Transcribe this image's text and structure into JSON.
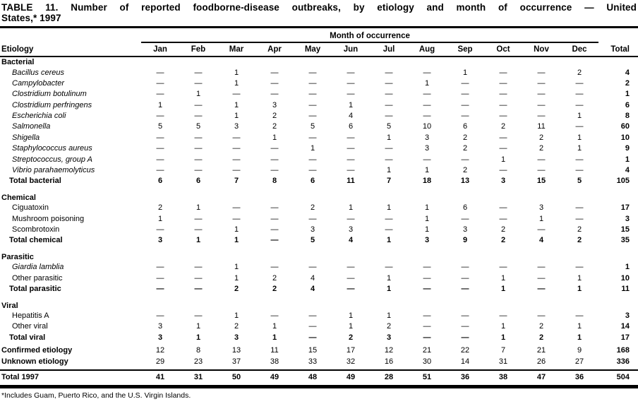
{
  "title_line1": "TABLE 11. Number of reported foodborne-disease outbreaks, by etiology and month of occurrence — United",
  "title_line2": "States,* 1997",
  "header": {
    "group_label": "Month of occurrence",
    "etiology_label": "Etiology",
    "months": [
      "Jan",
      "Feb",
      "Mar",
      "Apr",
      "May",
      "Jun",
      "Jul",
      "Aug",
      "Sep",
      "Oct",
      "Nov",
      "Dec"
    ],
    "total_label": "Total"
  },
  "sections": [
    {
      "name": "Bacterial",
      "rows": [
        {
          "label": "Bacillus cereus",
          "italic": true,
          "values": [
            "—",
            "—",
            "1",
            "—",
            "—",
            "—",
            "—",
            "—",
            "1",
            "—",
            "—",
            "2"
          ],
          "total": "4"
        },
        {
          "label": "Campylobacter",
          "italic": true,
          "values": [
            "—",
            "—",
            "1",
            "—",
            "—",
            "—",
            "—",
            "1",
            "—",
            "—",
            "—",
            "—"
          ],
          "total": "2"
        },
        {
          "label": "Clostridium botulinum",
          "italic": true,
          "values": [
            "—",
            "1",
            "—",
            "—",
            "—",
            "—",
            "—",
            "—",
            "—",
            "—",
            "—",
            "—"
          ],
          "total": "1"
        },
        {
          "label": "Clostridium perfringens",
          "italic": true,
          "values": [
            "1",
            "—",
            "1",
            "3",
            "—",
            "1",
            "—",
            "—",
            "—",
            "—",
            "—",
            "—"
          ],
          "total": "6"
        },
        {
          "label": "Escherichia coli",
          "italic": true,
          "values": [
            "—",
            "—",
            "1",
            "2",
            "—",
            "4",
            "—",
            "—",
            "—",
            "—",
            "—",
            "1"
          ],
          "total": "8"
        },
        {
          "label": "Salmonella",
          "italic": true,
          "values": [
            "5",
            "5",
            "3",
            "2",
            "5",
            "6",
            "5",
            "10",
            "6",
            "2",
            "11",
            "—"
          ],
          "total": "60"
        },
        {
          "label": "Shigella",
          "italic": true,
          "values": [
            "—",
            "—",
            "—",
            "1",
            "—",
            "—",
            "1",
            "3",
            "2",
            "—",
            "2",
            "1"
          ],
          "total": "10"
        },
        {
          "label": "Staphylococcus aureus",
          "italic": true,
          "values": [
            "—",
            "—",
            "—",
            "—",
            "1",
            "—",
            "—",
            "3",
            "2",
            "—",
            "2",
            "1"
          ],
          "total": "9"
        },
        {
          "label": "Streptococcus, group A",
          "italic": true,
          "values": [
            "—",
            "—",
            "—",
            "—",
            "—",
            "—",
            "—",
            "—",
            "—",
            "1",
            "—",
            "—"
          ],
          "total": "1"
        },
        {
          "label": "Vibrio parahaemolyticus",
          "italic": true,
          "values": [
            "—",
            "—",
            "—",
            "—",
            "—",
            "—",
            "1",
            "1",
            "2",
            "—",
            "—",
            "—"
          ],
          "total": "4"
        },
        {
          "label": "Total bacterial",
          "bold": true,
          "values": [
            "6",
            "6",
            "7",
            "8",
            "6",
            "11",
            "7",
            "18",
            "13",
            "3",
            "15",
            "5"
          ],
          "total": "105"
        }
      ]
    },
    {
      "name": "Chemical",
      "rows": [
        {
          "label": "Ciguatoxin",
          "values": [
            "2",
            "1",
            "—",
            "—",
            "2",
            "1",
            "1",
            "1",
            "6",
            "—",
            "3",
            "—"
          ],
          "total": "17"
        },
        {
          "label": "Mushroom poisoning",
          "values": [
            "1",
            "—",
            "—",
            "—",
            "—",
            "—",
            "—",
            "1",
            "—",
            "—",
            "1",
            "—"
          ],
          "total": "3"
        },
        {
          "label": "Scombrotoxin",
          "values": [
            "—",
            "—",
            "1",
            "—",
            "3",
            "3",
            "—",
            "1",
            "3",
            "2",
            "—",
            "2"
          ],
          "total": "15"
        },
        {
          "label": "Total chemical",
          "bold": true,
          "values": [
            "3",
            "1",
            "1",
            "—",
            "5",
            "4",
            "1",
            "3",
            "9",
            "2",
            "4",
            "2"
          ],
          "total": "35"
        }
      ]
    },
    {
      "name": "Parasitic",
      "rows": [
        {
          "label": "Giardia lamblia",
          "italic": true,
          "values": [
            "—",
            "—",
            "1",
            "—",
            "—",
            "—",
            "—",
            "—",
            "—",
            "—",
            "—",
            "—"
          ],
          "total": "1"
        },
        {
          "label": "Other parasitic",
          "values": [
            "—",
            "—",
            "1",
            "2",
            "4",
            "—",
            "1",
            "—",
            "—",
            "1",
            "—",
            "1"
          ],
          "total": "10"
        },
        {
          "label": "Total parasitic",
          "bold": true,
          "values": [
            "—",
            "—",
            "2",
            "2",
            "4",
            "—",
            "1",
            "—",
            "—",
            "1",
            "—",
            "1"
          ],
          "total": "11"
        }
      ]
    },
    {
      "name": "Viral",
      "rows": [
        {
          "label": "Hepatitis A",
          "values": [
            "—",
            "—",
            "1",
            "—",
            "—",
            "1",
            "1",
            "—",
            "—",
            "—",
            "—",
            "—"
          ],
          "total": "3"
        },
        {
          "label": "Other viral",
          "values": [
            "3",
            "1",
            "2",
            "1",
            "—",
            "1",
            "2",
            "—",
            "—",
            "1",
            "2",
            "1"
          ],
          "total": "14"
        },
        {
          "label": "Total viral",
          "bold": true,
          "values": [
            "3",
            "1",
            "3",
            "1",
            "—",
            "2",
            "3",
            "—",
            "—",
            "1",
            "2",
            "1"
          ],
          "total": "17"
        }
      ]
    }
  ],
  "summary_rows": [
    {
      "label": "Confirmed etiology",
      "bold_label": true,
      "values": [
        "12",
        "8",
        "13",
        "11",
        "15",
        "17",
        "12",
        "21",
        "22",
        "7",
        "21",
        "9"
      ],
      "total": "168"
    },
    {
      "label": "Unknown etiology",
      "bold_label": true,
      "values": [
        "29",
        "23",
        "37",
        "38",
        "33",
        "32",
        "16",
        "30",
        "14",
        "31",
        "26",
        "27"
      ],
      "total": "336"
    }
  ],
  "grand_total_row": {
    "label": "Total 1997",
    "bold": true,
    "values": [
      "41",
      "31",
      "50",
      "49",
      "48",
      "49",
      "28",
      "51",
      "36",
      "38",
      "47",
      "36"
    ],
    "total": "504"
  },
  "footnote": "*Includes Guam, Puerto Rico, and the U.S. Virgin Islands."
}
